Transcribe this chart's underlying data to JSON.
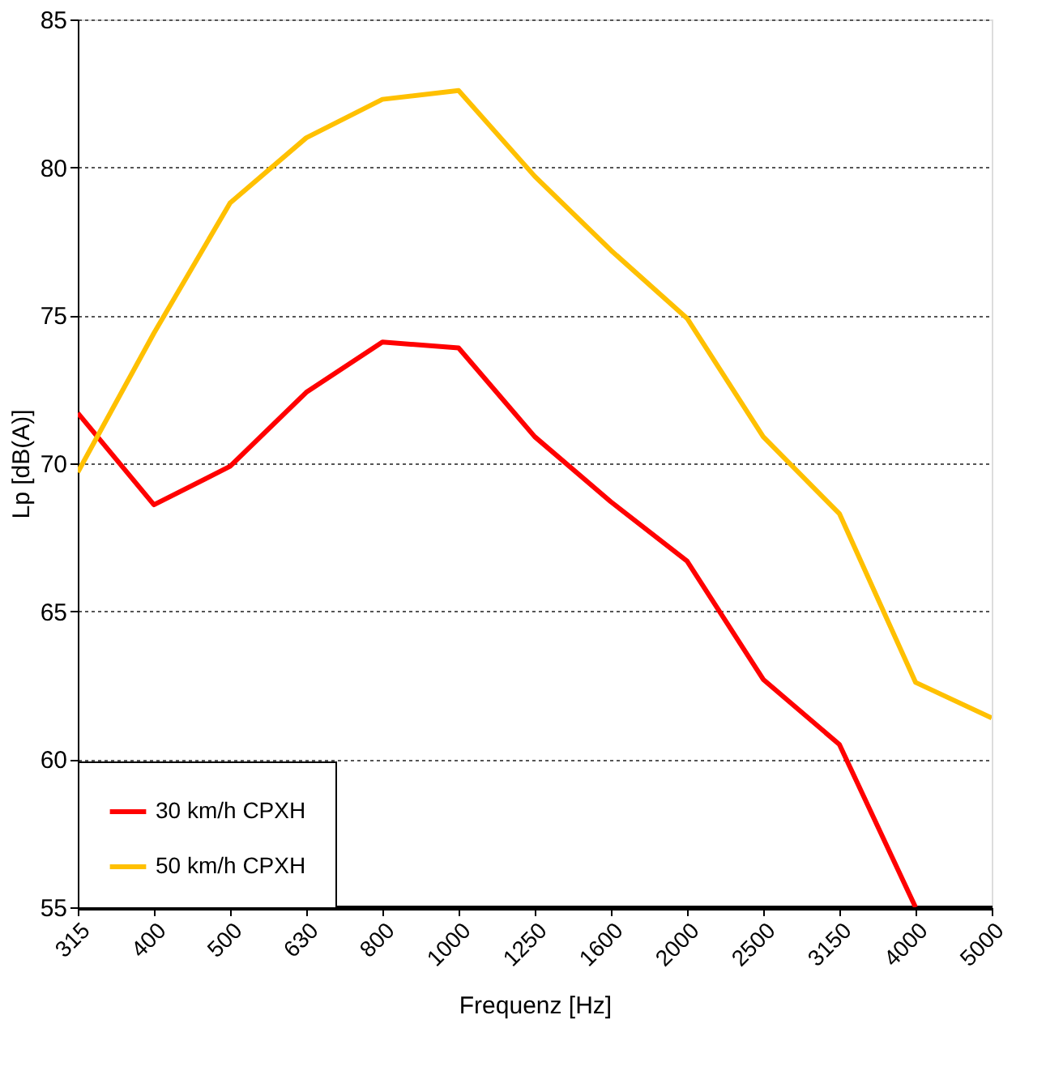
{
  "chart_data": {
    "type": "line",
    "xlabel": "Frequenz [Hz]",
    "ylabel": "Lp [dB(A)]",
    "categories": [
      "315",
      "400",
      "500",
      "630",
      "800",
      "1000",
      "1250",
      "1600",
      "2000",
      "2500",
      "3150",
      "4000",
      "5000"
    ],
    "series": [
      {
        "name": "30 km/h CPXH",
        "color": "#ff0000",
        "values": [
          71.7,
          68.6,
          69.9,
          72.4,
          74.1,
          73.9,
          70.9,
          68.7,
          66.7,
          62.7,
          60.5,
          55,
          null
        ]
      },
      {
        "name": "50 km/h CPXH",
        "color": "#ffc000",
        "values": [
          69.7,
          74.4,
          78.8,
          81.0,
          82.3,
          82.6,
          79.7,
          77.2,
          74.9,
          70.9,
          68.3,
          62.6,
          61.4
        ]
      }
    ],
    "ylim": [
      55,
      85
    ],
    "yticks": [
      55,
      60,
      65,
      70,
      75,
      80,
      85
    ],
    "grid": "y",
    "legend": "bottom left",
    "marker": "none",
    "line_style": "solid"
  }
}
